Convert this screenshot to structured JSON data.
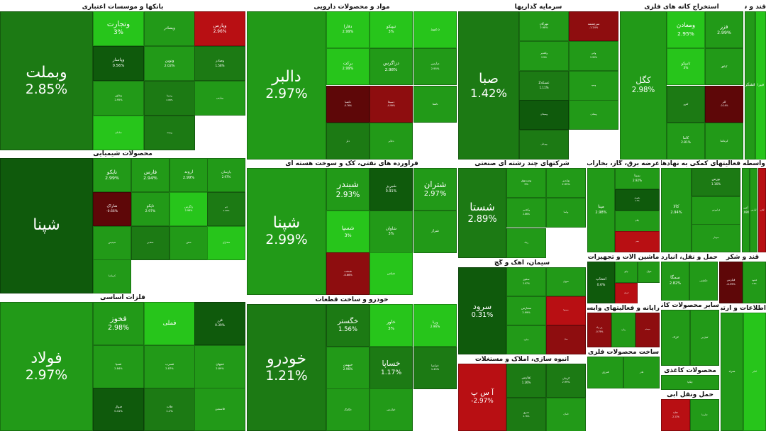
{
  "colors": {
    "g_dark": "#1c7a14",
    "g_mid": "#229a18",
    "g_bright": "#27c51b",
    "g_deep": "#0f5a0c",
    "r": "#b80f13",
    "r_dark": "#5e0708",
    "r_mid": "#8e0d0f"
  },
  "sectors": [
    {
      "title": "بانکها و موسسات اعتباری",
      "tiles": [
        {
          "s": "وبملت",
          "p": "2.85%",
          "c": "g_dark",
          "f": 1.6
        },
        {
          "s": "وتجارت",
          "p": "3%",
          "c": "g_bright",
          "f": 1.5
        },
        {
          "s": "وبصادر",
          "p": "",
          "c": "g_mid",
          "f": 0.8
        },
        {
          "s": "وپارس",
          "p": "2.96%",
          "c": "r",
          "f": 1.0
        },
        {
          "s": "وپاسار",
          "p": "0.56%",
          "c": "g_deep",
          "f": 0.9
        },
        {
          "s": "ونوین",
          "p": "2.02%",
          "c": "g_mid",
          "f": 0.8
        },
        {
          "s": "وصادر",
          "p": "1.58%",
          "c": "g_dark",
          "f": 0.7
        },
        {
          "s": "وخاور",
          "p": "2.95%",
          "c": "g_mid",
          "f": 0.6
        },
        {
          "s": "وسینا",
          "p": "2.08%",
          "c": "g_dark",
          "f": 0.5
        },
        {
          "s": "وپارس",
          "p": "",
          "c": "g_mid",
          "f": 0.5
        },
        {
          "s": "سامان",
          "p": "",
          "c": "g_bright",
          "f": 0.5
        },
        {
          "s": "وبیمه",
          "p": "",
          "c": "g_dark",
          "f": 0.5
        }
      ]
    },
    {
      "title": "مواد و محصولات دارویی",
      "tiles": [
        {
          "s": "دالبر",
          "p": "2.97%",
          "c": "g_mid",
          "f": 1.5
        },
        {
          "s": "دفارا",
          "p": "2.99%",
          "c": "g_bright",
          "f": 0.8
        },
        {
          "s": "تیپیکو",
          "p": "3%",
          "c": "g_bright",
          "f": 0.8
        },
        {
          "s": "دعبید",
          "p": "",
          "c": "g_bright",
          "f": 0.8
        },
        {
          "s": "برکت",
          "p": "2.99%",
          "c": "g_bright",
          "f": 0.8
        },
        {
          "s": "دزاگرس",
          "p": "2.98%",
          "c": "g_mid",
          "f": 0.9
        },
        {
          "s": "دپارس",
          "p": "2.95%",
          "c": "g_mid",
          "f": 0.6
        },
        {
          "s": "دکیمیا",
          "p": "-0.76%",
          "c": "r_dark",
          "f": 0.5
        },
        {
          "s": "دسبحا",
          "p": "-0.99%",
          "c": "r_mid",
          "f": 0.5
        },
        {
          "s": "دلقما",
          "p": "",
          "c": "g_mid",
          "f": 0.5
        },
        {
          "s": "دلر",
          "p": "",
          "c": "g_dark",
          "f": 0.5
        },
        {
          "s": "دجابر",
          "p": "",
          "c": "g_mid",
          "f": 0.5
        }
      ]
    },
    {
      "title": "سرمایه گذاریها",
      "tiles": [
        {
          "s": "صبا",
          "p": "1.42%",
          "c": "g_dark",
          "f": 1.6
        },
        {
          "s": "مهرگان",
          "p": "2.98%",
          "c": "g_mid",
          "f": 0.7
        },
        {
          "s": "سرچشمه",
          "p": "-1.24%",
          "c": "r_mid",
          "f": 0.7
        },
        {
          "s": "وکغدیر",
          "p": "2.9%",
          "c": "g_mid",
          "f": 0.6
        },
        {
          "s": "واتی",
          "p": "2.95%",
          "c": "g_mid",
          "f": 0.6
        },
        {
          "s": "عسکه2",
          "p": "1.11%",
          "c": "g_dark",
          "f": 0.8
        },
        {
          "s": "وسپه",
          "p": "",
          "c": "g_mid",
          "f": 0.5
        },
        {
          "s": "وسبحان",
          "p": "",
          "c": "g_deep",
          "f": 0.5
        },
        {
          "s": "ومعادن",
          "p": "",
          "c": "g_mid",
          "f": 0.5
        },
        {
          "s": "وبوعلی",
          "p": "",
          "c": "g_dark",
          "f": 0.5
        }
      ]
    },
    {
      "title": "استخراج کانه های فلزی",
      "tiles": [
        {
          "s": "کگل",
          "p": "2.98%",
          "c": "g_mid",
          "f": 1.3
        },
        {
          "s": "ومعادن",
          "p": "2.95%",
          "c": "g_bright",
          "f": 1.2
        },
        {
          "s": "فزر",
          "p": "2.99%",
          "c": "g_mid",
          "f": 1.0
        },
        {
          "s": "تامپکو",
          "p": "3%",
          "c": "g_bright",
          "f": 0.7
        },
        {
          "s": "کبافق",
          "p": "",
          "c": "g_mid",
          "f": 0.5
        },
        {
          "s": "کترو",
          "p": "",
          "c": "g_dark",
          "f": 0.5
        },
        {
          "s": "کلر",
          "p": "-0.14%",
          "c": "r_dark",
          "f": 0.5
        },
        {
          "s": "کاما",
          "p": "2.81%",
          "c": "g_mid",
          "f": 0.7
        },
        {
          "s": "کرماشا",
          "p": "",
          "c": "g_mid",
          "f": 0.5
        }
      ]
    },
    {
      "title": "قند و شکر",
      "tiles": [
        {
          "s": "قشکر",
          "p": "",
          "c": "g_mid",
          "f": 1.0
        },
        {
          "s": "قپیرا",
          "p": "",
          "c": "g_bright",
          "f": 0.8
        }
      ]
    },
    {
      "title": "محصولات شیمیایی",
      "tiles": [
        {
          "s": "شپنا",
          "p": "",
          "c": "g_deep",
          "f": 1.4
        },
        {
          "s": "نایکو",
          "p": "2.99%",
          "c": "g_mid",
          "f": 1.1
        },
        {
          "s": "فارس",
          "p": "2.94%",
          "c": "g_mid",
          "f": 1.1
        },
        {
          "s": "اروند",
          "p": "2.99%",
          "c": "g_mid",
          "f": 0.9
        },
        {
          "s": "پارسان",
          "p": "2.97%",
          "c": "g_mid",
          "f": 0.7
        },
        {
          "s": "شاراک",
          "p": "-0.66%",
          "c": "r_dark",
          "f": 0.8
        },
        {
          "s": "تاپکو",
          "p": "2.97%",
          "c": "g_mid",
          "f": 0.8
        },
        {
          "s": "زاگرس",
          "p": "2.98%",
          "c": "g_bright",
          "f": 0.6
        },
        {
          "s": "جم",
          "p": "1.29%",
          "c": "g_dark",
          "f": 0.5
        },
        {
          "s": "شپدیس",
          "p": "",
          "c": "g_mid",
          "f": 0.5
        },
        {
          "s": "شغدیر",
          "p": "",
          "c": "g_dark",
          "f": 0.5
        },
        {
          "s": "شفن",
          "p": "",
          "c": "g_mid",
          "f": 0.5
        },
        {
          "s": "شخارک",
          "p": "",
          "c": "g_bright",
          "f": 0.5
        },
        {
          "s": "کرماشا",
          "p": "",
          "c": "g_mid",
          "f": 0.5
        }
      ]
    },
    {
      "title": "فراورده های نفتی، کک و سوخت هسته ای",
      "tiles": [
        {
          "s": "شپنا",
          "p": "2.99%",
          "c": "g_mid",
          "f": 1.6
        },
        {
          "s": "شبندر",
          "p": "2.93%",
          "c": "g_mid",
          "f": 1.5
        },
        {
          "s": "شبریز",
          "p": "0.91%",
          "c": "g_deep",
          "f": 0.7
        },
        {
          "s": "شتران",
          "p": "2.97%",
          "c": "g_mid",
          "f": 1.4
        },
        {
          "s": "شسپا",
          "p": "3%",
          "c": "g_bright",
          "f": 0.9
        },
        {
          "s": "شاوان",
          "p": "3%",
          "c": "g_mid",
          "f": 0.7
        },
        {
          "s": "شراز",
          "p": "",
          "c": "g_mid",
          "f": 0.6
        },
        {
          "s": "شنفت",
          "p": "-0.66%",
          "c": "r_mid",
          "f": 0.5
        },
        {
          "s": "شپاس",
          "p": "",
          "c": "g_bright",
          "f": 0.5
        }
      ]
    },
    {
      "title": "شرکتهای چند رشته ای صنعتی",
      "tiles": [
        {
          "s": "شستا",
          "p": "2.89%",
          "c": "g_dark",
          "f": 1.6
        },
        {
          "s": "وصندوق",
          "p": "3%",
          "c": "g_mid",
          "f": 0.7
        },
        {
          "s": "وغدیر",
          "p": "2.95%",
          "c": "g_mid",
          "f": 0.7
        },
        {
          "s": "وکغدیر",
          "p": "2.86%",
          "c": "g_mid",
          "f": 0.6
        },
        {
          "s": "وپاسا",
          "p": "",
          "c": "g_mid",
          "f": 0.5
        },
        {
          "s": "رنیک",
          "p": "",
          "c": "g_mid",
          "f": 0.5
        }
      ]
    },
    {
      "title": "عرضه برق، گاز، بخاراب گرم",
      "tiles": [
        {
          "s": "مپنا",
          "p": "2.98%",
          "c": "g_mid",
          "f": 1.0
        },
        {
          "s": "بمپنا",
          "p": "2.92%",
          "c": "g_mid",
          "f": 0.8
        },
        {
          "s": "بجهرم",
          "p": "1.7%",
          "c": "g_deep",
          "f": 0.5
        },
        {
          "s": "بکام",
          "p": "",
          "c": "g_mid",
          "f": 0.5
        },
        {
          "s": "بفجر",
          "p": "",
          "c": "r",
          "f": 0.4
        }
      ]
    },
    {
      "title": "فعالیتهای کمکی به نهادهای مالی واسط",
      "tiles": [
        {
          "s": "کالا",
          "p": "2.94%",
          "c": "g_mid",
          "f": 1.0
        },
        {
          "s": "بورس",
          "p": "1.16%",
          "c": "g_dark",
          "f": 0.8
        },
        {
          "s": "فرابورس",
          "p": "",
          "c": "g_mid",
          "f": 0.5
        },
        {
          "s": "سپیدار",
          "p": "",
          "c": "g_mid",
          "f": 0.5
        }
      ]
    },
    {
      "title": "واسطه",
      "tiles": [
        {
          "s": "لبن",
          "p": "2.99%",
          "c": "g_mid",
          "f": 0.8
        },
        {
          "s": "لپارس",
          "p": "",
          "c": "g_mid",
          "f": 0.5
        },
        {
          "s": "لخزر",
          "p": "",
          "c": "r",
          "f": 0.5
        }
      ]
    },
    {
      "title": "سیمان، آهک و گچ",
      "tiles": [
        {
          "s": "سرود",
          "p": "0.31%",
          "c": "g_deep",
          "f": 1.2
        },
        {
          "s": "سخوز",
          "p": "2.97%",
          "c": "g_mid",
          "f": 0.6
        },
        {
          "s": "سبهان",
          "p": "",
          "c": "g_mid",
          "f": 0.5
        },
        {
          "s": "سفارس",
          "p": "2.99%",
          "c": "g_mid",
          "f": 0.7
        },
        {
          "s": "سصفها",
          "p": "",
          "c": "r",
          "f": 0.4
        },
        {
          "s": "سکرد",
          "p": "",
          "c": "g_mid",
          "f": 0.5
        },
        {
          "s": "سفار",
          "p": "",
          "c": "r_mid",
          "f": 0.4
        }
      ]
    },
    {
      "title": "ماشین آلات و تجهیزات",
      "tiles": [
        {
          "s": "انتخاب",
          "p": "0.6%",
          "c": "g_deep",
          "f": 0.9
        },
        {
          "s": "تپکو",
          "p": "",
          "c": "g_mid",
          "f": 0.5
        },
        {
          "s": "فنوال",
          "p": "",
          "c": "g_mid",
          "f": 0.5
        },
        {
          "s": "کرمان",
          "p": "",
          "c": "r",
          "f": 0.4
        }
      ]
    },
    {
      "title": "حمل و نقل، انبارداری و ارتباطات",
      "tiles": [
        {
          "s": "سمگا",
          "p": "2.82%",
          "c": "g_mid",
          "f": 1.0
        },
        {
          "s": "حکشتی",
          "p": "",
          "c": "g_mid",
          "f": 0.6
        }
      ]
    },
    {
      "title": "قند و شکر",
      "tiles": [
        {
          "s": "قپارس",
          "p": "-0.39%",
          "c": "r_dark",
          "f": 0.7
        },
        {
          "s": "قشهد",
          "p": "2.9%",
          "c": "g_mid",
          "f": 0.5
        }
      ]
    },
    {
      "title": "فلزات اساسی",
      "tiles": [
        {
          "s": "فولاد",
          "p": "2.97%",
          "c": "g_mid",
          "f": 1.6
        },
        {
          "s": "فخوز",
          "p": "2.98%",
          "c": "g_mid",
          "f": 1.3
        },
        {
          "s": "فملی",
          "p": "",
          "c": "g_bright",
          "f": 1.0
        },
        {
          "s": "فزر",
          "p": "0.39%",
          "c": "g_deep",
          "f": 0.6
        },
        {
          "s": "فسپا",
          "p": "2.84%",
          "c": "g_mid",
          "f": 0.5
        },
        {
          "s": "فسرب",
          "p": "2.87%",
          "c": "g_mid",
          "f": 0.5
        },
        {
          "s": "فجهان",
          "p": "2.89%",
          "c": "g_mid",
          "f": 0.5
        },
        {
          "s": "فنوال",
          "p": "0.41%",
          "c": "g_deep",
          "f": 0.5
        },
        {
          "s": "فلات",
          "p": "1.1%",
          "c": "g_dark",
          "f": 0.5
        },
        {
          "s": "فاسمین",
          "p": "",
          "c": "g_mid",
          "f": 0.5
        }
      ]
    },
    {
      "title": "خودرو و ساخت قطعات",
      "tiles": [
        {
          "s": "خودرو",
          "p": "1.21%",
          "c": "g_dark",
          "f": 1.6
        },
        {
          "s": "خگستر",
          "p": "1.56%",
          "c": "g_dark",
          "f": 1.2
        },
        {
          "s": "خاور",
          "p": "3%",
          "c": "g_bright",
          "f": 0.8
        },
        {
          "s": "ورنا",
          "p": "2.96%",
          "c": "g_bright",
          "f": 0.6
        },
        {
          "s": "خبهمن",
          "p": "2.96%",
          "c": "g_mid",
          "f": 0.6
        },
        {
          "s": "خساپا",
          "p": "1.17%",
          "c": "g_dark",
          "f": 1.3
        },
        {
          "s": "خزامیا",
          "p": "1.45%",
          "c": "g_dark",
          "f": 0.5
        },
        {
          "s": "خکمک",
          "p": "",
          "c": "g_mid",
          "f": 0.5
        },
        {
          "s": "خپارس",
          "p": "",
          "c": "g_mid",
          "f": 0.5
        }
      ]
    },
    {
      "title": "انبوه سازی، املاک و مستغلات",
      "tiles": [
        {
          "s": "آ س پ",
          "p": "-2.97%",
          "c": "r",
          "f": 1.1
        },
        {
          "s": "ثفارس",
          "p": "1.26%",
          "c": "g_dark",
          "f": 0.7
        },
        {
          "s": "کرمان",
          "p": "2.99%",
          "c": "g_dark",
          "f": 0.6
        },
        {
          "s": "ثشرق",
          "p": "2.76%",
          "c": "g_dark",
          "f": 0.5
        },
        {
          "s": "ثامان",
          "p": "",
          "c": "g_mid",
          "f": 0.5
        }
      ]
    },
    {
      "title": "رایانه و فعالیتهای وابسته به آن",
      "tiles": [
        {
          "s": "پی پاد",
          "p": "-0.79%",
          "c": "r_mid",
          "f": 0.6
        },
        {
          "s": "رتاپ",
          "p": "",
          "c": "g_mid",
          "f": 0.5
        },
        {
          "s": "سیستم",
          "p": "",
          "c": "r_mid",
          "f": 0.4
        }
      ]
    },
    {
      "title": "ساخت محصولات فلزی",
      "tiles": [
        {
          "s": "فنرژی",
          "p": "",
          "c": "g_mid",
          "f": 0.6
        },
        {
          "s": "فاذر",
          "p": "",
          "c": "g_mid",
          "f": 0.5
        }
      ]
    },
    {
      "title": "سایر محصولات کانی غیرفلزی",
      "tiles": [
        {
          "s": "کاراک",
          "p": "",
          "c": "g_mid",
          "f": 0.6
        },
        {
          "s": "کفپارس",
          "p": "",
          "c": "g_mid",
          "f": 0.5
        }
      ]
    },
    {
      "title": "محصولات کاغذی",
      "tiles": [
        {
          "s": "چکاپا",
          "p": "",
          "c": "g_mid",
          "f": 0.6
        }
      ]
    },
    {
      "title": "حمل ونقل آبی",
      "tiles": [
        {
          "s": "حتاید",
          "p": "-2.11%",
          "c": "r",
          "f": 0.6
        },
        {
          "s": "حپارسا",
          "p": "",
          "c": "g_mid",
          "f": 0.5
        }
      ]
    },
    {
      "title": "اطلاعات و ارتباطات",
      "tiles": [
        {
          "s": "همراه",
          "p": "",
          "c": "g_mid",
          "f": 0.6
        },
        {
          "s": "اخابر",
          "p": "",
          "c": "g_bright",
          "f": 0.5
        }
      ]
    }
  ]
}
